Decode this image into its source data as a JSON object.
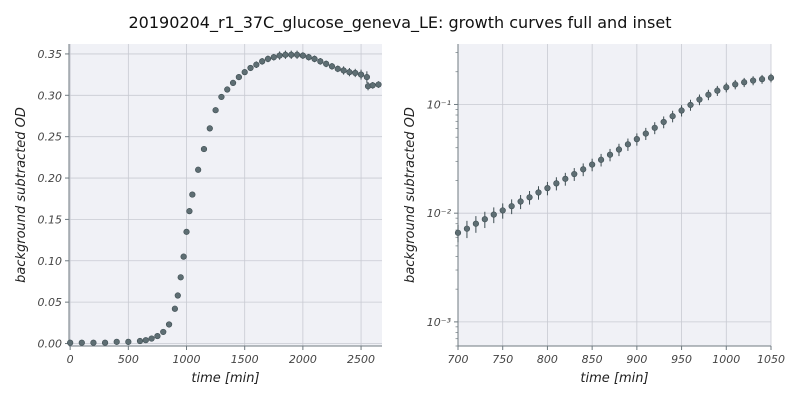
{
  "figure": {
    "title": "20190204_r1_37C_glucose_geneva_LE: growth curves full and inset"
  },
  "colors": {
    "background": "#ffffff",
    "plot_bg": "#f0f1f6",
    "grid": "#c8cad2",
    "marker": "#5e6e73",
    "marker_edge": "#3e4d52",
    "spine": "#6f7a80"
  },
  "chart_data": [
    {
      "type": "scatter",
      "title": "",
      "xlabel": "time [min]",
      "ylabel": "background subtracted OD",
      "xlim": [
        -10,
        2680
      ],
      "ylim": [
        -0.003,
        0.362
      ],
      "yscale": "linear",
      "grid": true,
      "error_bars": true,
      "xticks": [
        0,
        500,
        1000,
        1500,
        2000,
        2500
      ],
      "xtick_labels": [
        "0",
        "500",
        "1000",
        "1500",
        "2000",
        "2500"
      ],
      "yticks": [
        0.0,
        0.05,
        0.1,
        0.15,
        0.2,
        0.25,
        0.3,
        0.35
      ],
      "ytick_labels": [
        "0.00",
        "0.05",
        "0.10",
        "0.15",
        "0.20",
        "0.25",
        "0.30",
        "0.35"
      ],
      "x": [
        0,
        100,
        200,
        300,
        400,
        500,
        600,
        650,
        700,
        750,
        800,
        850,
        900,
        925,
        950,
        975,
        1000,
        1025,
        1050,
        1100,
        1150,
        1200,
        1250,
        1300,
        1350,
        1400,
        1450,
        1500,
        1550,
        1600,
        1650,
        1700,
        1750,
        1800,
        1850,
        1900,
        1950,
        2000,
        2050,
        2100,
        2150,
        2200,
        2250,
        2300,
        2350,
        2400,
        2450,
        2500,
        2550,
        2560,
        2600,
        2650
      ],
      "y": [
        0.001,
        0.001,
        0.001,
        0.001,
        0.002,
        0.002,
        0.003,
        0.004,
        0.006,
        0.009,
        0.014,
        0.023,
        0.042,
        0.058,
        0.08,
        0.105,
        0.135,
        0.16,
        0.18,
        0.21,
        0.235,
        0.26,
        0.282,
        0.298,
        0.307,
        0.315,
        0.322,
        0.328,
        0.333,
        0.337,
        0.341,
        0.344,
        0.346,
        0.348,
        0.349,
        0.349,
        0.349,
        0.348,
        0.346,
        0.344,
        0.341,
        0.338,
        0.335,
        0.332,
        0.33,
        0.328,
        0.327,
        0.325,
        0.322,
        0.311,
        0.312,
        0.313
      ],
      "yerr": [
        0.001,
        0.001,
        0.001,
        0.001,
        0.001,
        0.001,
        0.001,
        0.001,
        0.001,
        0.001,
        0.001,
        0.002,
        0.002,
        0.002,
        0.002,
        0.003,
        0.003,
        0.003,
        0.003,
        0.003,
        0.003,
        0.003,
        0.003,
        0.003,
        0.003,
        0.003,
        0.003,
        0.003,
        0.003,
        0.004,
        0.004,
        0.004,
        0.004,
        0.005,
        0.005,
        0.005,
        0.005,
        0.004,
        0.004,
        0.004,
        0.004,
        0.004,
        0.004,
        0.004,
        0.005,
        0.005,
        0.005,
        0.006,
        0.007,
        0.005,
        0.004,
        0.004
      ]
    },
    {
      "type": "scatter",
      "title": "",
      "xlabel": "time [min]",
      "ylabel": "background subtracted OD",
      "xlim": [
        700,
        1050
      ],
      "ylim": [
        0.0006,
        0.36
      ],
      "yscale": "log",
      "grid": true,
      "error_bars": true,
      "xticks": [
        700,
        750,
        800,
        850,
        900,
        950,
        1000,
        1050
      ],
      "xtick_labels": [
        "700",
        "750",
        "800",
        "850",
        "900",
        "950",
        "1000",
        "1050"
      ],
      "yticks": [
        0.001,
        0.01,
        0.1
      ],
      "ytick_labels": [
        "10⁻³",
        "10⁻²",
        "10⁻¹"
      ],
      "x": [
        700,
        710,
        720,
        730,
        740,
        750,
        760,
        770,
        780,
        790,
        800,
        810,
        820,
        830,
        840,
        850,
        860,
        870,
        880,
        890,
        900,
        910,
        920,
        930,
        940,
        950,
        960,
        970,
        980,
        990,
        1000,
        1010,
        1020,
        1030,
        1040,
        1050
      ],
      "y": [
        0.0066,
        0.0072,
        0.008,
        0.0088,
        0.0097,
        0.0106,
        0.0116,
        0.0128,
        0.014,
        0.0155,
        0.017,
        0.0188,
        0.0207,
        0.0229,
        0.0253,
        0.028,
        0.031,
        0.0345,
        0.0385,
        0.043,
        0.048,
        0.054,
        0.061,
        0.069,
        0.078,
        0.088,
        0.099,
        0.111,
        0.123,
        0.134,
        0.144,
        0.153,
        0.16,
        0.166,
        0.171,
        0.176
      ],
      "yerr": [
        0.0012,
        0.0013,
        0.0014,
        0.0015,
        0.0016,
        0.0017,
        0.0018,
        0.0019,
        0.002,
        0.0022,
        0.0024,
        0.0026,
        0.0028,
        0.0031,
        0.0034,
        0.0037,
        0.0041,
        0.0045,
        0.005,
        0.0056,
        0.0062,
        0.0069,
        0.0077,
        0.0086,
        0.0095,
        0.0105,
        0.0115,
        0.0125,
        0.0135,
        0.0142,
        0.0148,
        0.0152,
        0.0155,
        0.0158,
        0.016,
        0.0162
      ]
    }
  ]
}
